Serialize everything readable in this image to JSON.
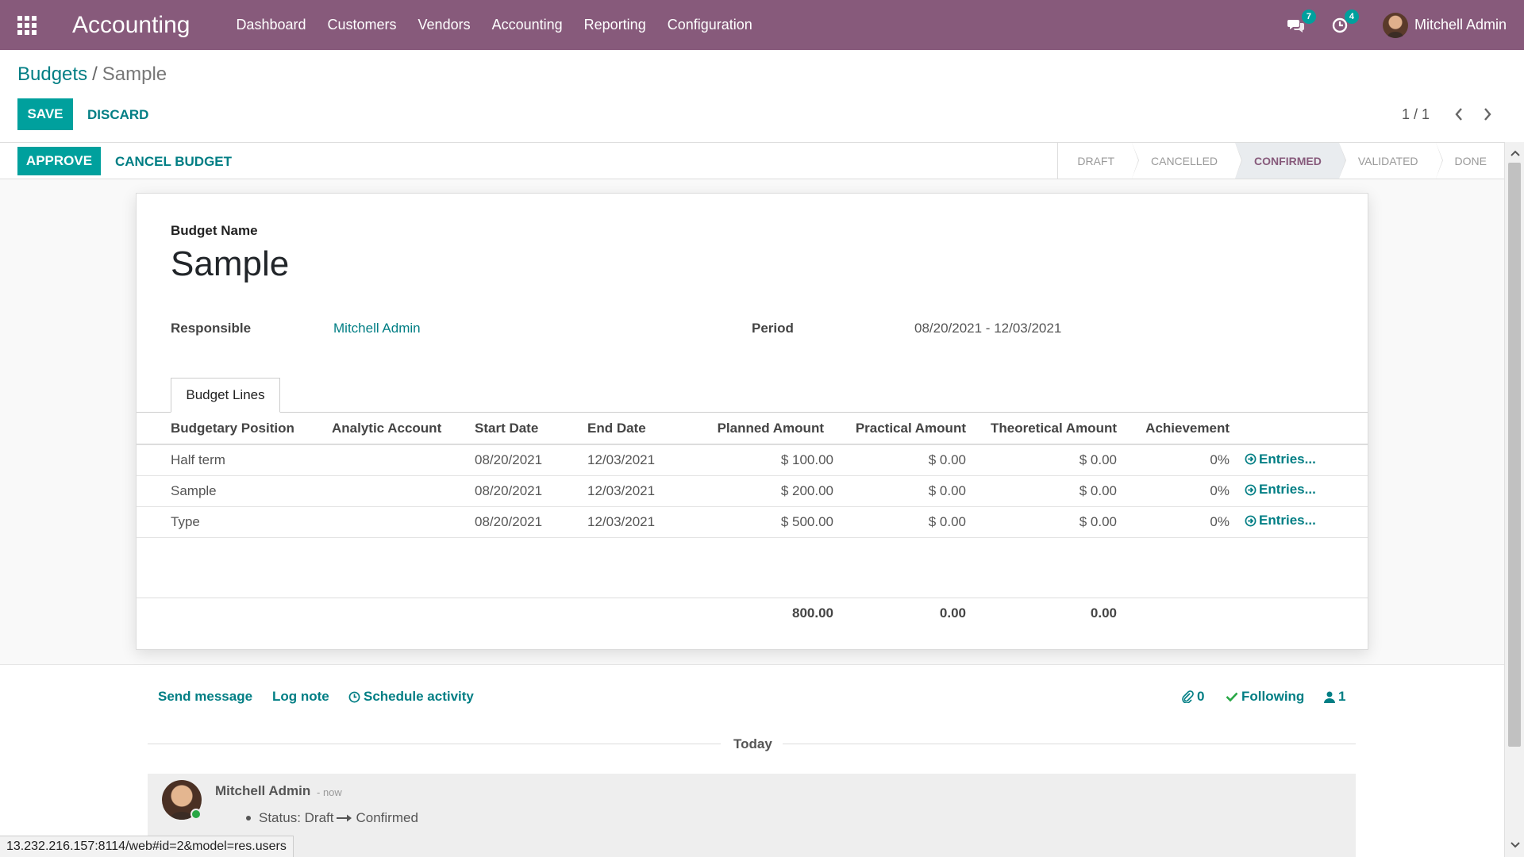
{
  "navbar": {
    "brand": "Accounting",
    "menu": [
      "Dashboard",
      "Customers",
      "Vendors",
      "Accounting",
      "Reporting",
      "Configuration"
    ],
    "messages_count": "7",
    "activities_count": "4",
    "user_name": "Mitchell Admin",
    "color": "#875a7b"
  },
  "breadcrumb": {
    "parent": "Budgets",
    "separator": "/",
    "current": "Sample"
  },
  "controls": {
    "save_label": "SAVE",
    "discard_label": "DISCARD",
    "pager": "1 / 1"
  },
  "statusbar": {
    "approve_label": "APPROVE",
    "cancel_label": "CANCEL BUDGET",
    "stages": [
      "DRAFT",
      "CANCELLED",
      "CONFIRMED",
      "VALIDATED",
      "DONE"
    ],
    "active_stage": "CONFIRMED"
  },
  "form": {
    "name_label": "Budget Name",
    "name": "Sample",
    "responsible_label": "Responsible",
    "responsible": "Mitchell Admin",
    "period_label": "Period",
    "period": "08/20/2021 - 12/03/2021",
    "tab_label": "Budget Lines"
  },
  "table": {
    "headers": [
      "Budgetary Position",
      "Analytic Account",
      "Start Date",
      "End Date",
      "Planned Amount",
      "Practical Amount",
      "Theoretical Amount",
      "Achievement"
    ],
    "rows": [
      {
        "position": "Half term",
        "analytic": "",
        "start": "08/20/2021",
        "end": "12/03/2021",
        "planned": "$ 100.00",
        "practical": "$ 0.00",
        "theoretical": "$ 0.00",
        "achievement": "0%",
        "entries": "Entries..."
      },
      {
        "position": "Sample",
        "analytic": "",
        "start": "08/20/2021",
        "end": "12/03/2021",
        "planned": "$ 200.00",
        "practical": "$ 0.00",
        "theoretical": "$ 0.00",
        "achievement": "0%",
        "entries": "Entries..."
      },
      {
        "position": "Type",
        "analytic": "",
        "start": "08/20/2021",
        "end": "12/03/2021",
        "planned": "$ 500.00",
        "practical": "$ 0.00",
        "theoretical": "$ 0.00",
        "achievement": "0%",
        "entries": "Entries..."
      }
    ],
    "totals": {
      "planned": "800.00",
      "practical": "0.00",
      "theoretical": "0.00"
    }
  },
  "chatter": {
    "send_message": "Send message",
    "log_note": "Log note",
    "schedule_activity": "Schedule activity",
    "attachments_count": "0",
    "following": "Following",
    "followers_count": "1",
    "today": "Today",
    "message": {
      "author": "Mitchell Admin",
      "time": "- now",
      "status_label": "Status: Draft",
      "status_new": "Confirmed"
    }
  },
  "status_url": "13.232.216.157:8114/web#id=2&model=res.users"
}
